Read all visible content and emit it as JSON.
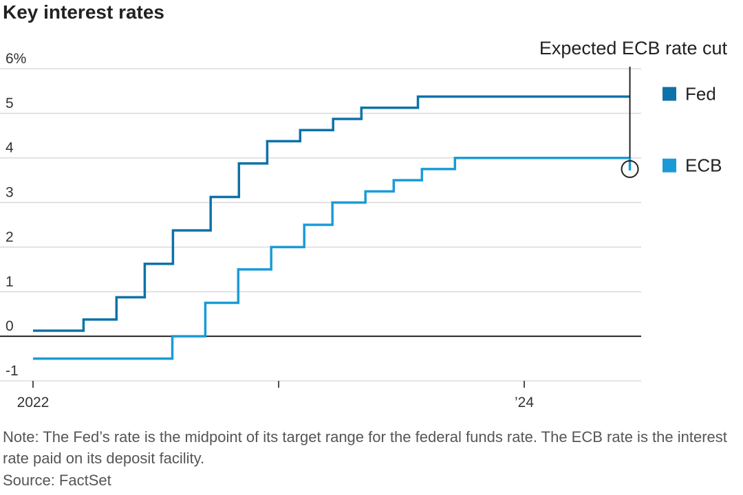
{
  "title": "Key interest rates",
  "note": "Note: The Fed’s rate is the midpoint of its target range for the federal funds rate. The ECB rate is the interest rate paid on its deposit facility.",
  "source": "Source: FactSet",
  "chart_data": {
    "type": "line",
    "step": true,
    "title": "Key interest rates",
    "xlabel": "",
    "ylabel": "",
    "xlim": [
      "2022-01-01",
      "2024-06-06"
    ],
    "ylim": [
      -1,
      6
    ],
    "grid": true,
    "y_ticks": [
      {
        "value": 6,
        "label": "6%"
      },
      {
        "value": 5,
        "label": "5"
      },
      {
        "value": 4,
        "label": "4"
      },
      {
        "value": 3,
        "label": "3"
      },
      {
        "value": 2,
        "label": "2"
      },
      {
        "value": 1,
        "label": "1"
      },
      {
        "value": 0,
        "label": "0"
      },
      {
        "value": -1,
        "label": "-1"
      }
    ],
    "x_ticks": [
      {
        "value": "2022-01-01",
        "label": "2022"
      },
      {
        "value": "2023-01-01",
        "label": ""
      },
      {
        "value": "2024-01-01",
        "label": "’24"
      }
    ],
    "legend_position": "right",
    "series": [
      {
        "name": "Fed",
        "color": "#0d72a8",
        "points": [
          [
            "2022-01-01",
            0.125
          ],
          [
            "2022-03-17",
            0.375
          ],
          [
            "2022-05-05",
            0.875
          ],
          [
            "2022-06-16",
            1.625
          ],
          [
            "2022-07-28",
            2.375
          ],
          [
            "2022-09-22",
            3.125
          ],
          [
            "2022-11-03",
            3.875
          ],
          [
            "2022-12-15",
            4.375
          ],
          [
            "2023-02-02",
            4.625
          ],
          [
            "2023-03-23",
            4.875
          ],
          [
            "2023-05-04",
            5.125
          ],
          [
            "2023-07-27",
            5.375
          ],
          [
            "2024-06-06",
            5.375
          ]
        ]
      },
      {
        "name": "ECB",
        "color": "#1a9bd7",
        "points": [
          [
            "2022-01-01",
            -0.5
          ],
          [
            "2022-07-27",
            0.0
          ],
          [
            "2022-09-14",
            0.75
          ],
          [
            "2022-11-02",
            1.5
          ],
          [
            "2022-12-21",
            2.0
          ],
          [
            "2023-02-08",
            2.5
          ],
          [
            "2023-03-22",
            3.0
          ],
          [
            "2023-05-10",
            3.25
          ],
          [
            "2023-06-21",
            3.5
          ],
          [
            "2023-08-02",
            3.75
          ],
          [
            "2023-09-20",
            4.0
          ],
          [
            "2024-06-06",
            4.0
          ]
        ]
      }
    ],
    "annotations": [
      {
        "text": "Expected ECB rate cut",
        "x": "2024-06-06",
        "y": 3.75
      }
    ]
  }
}
